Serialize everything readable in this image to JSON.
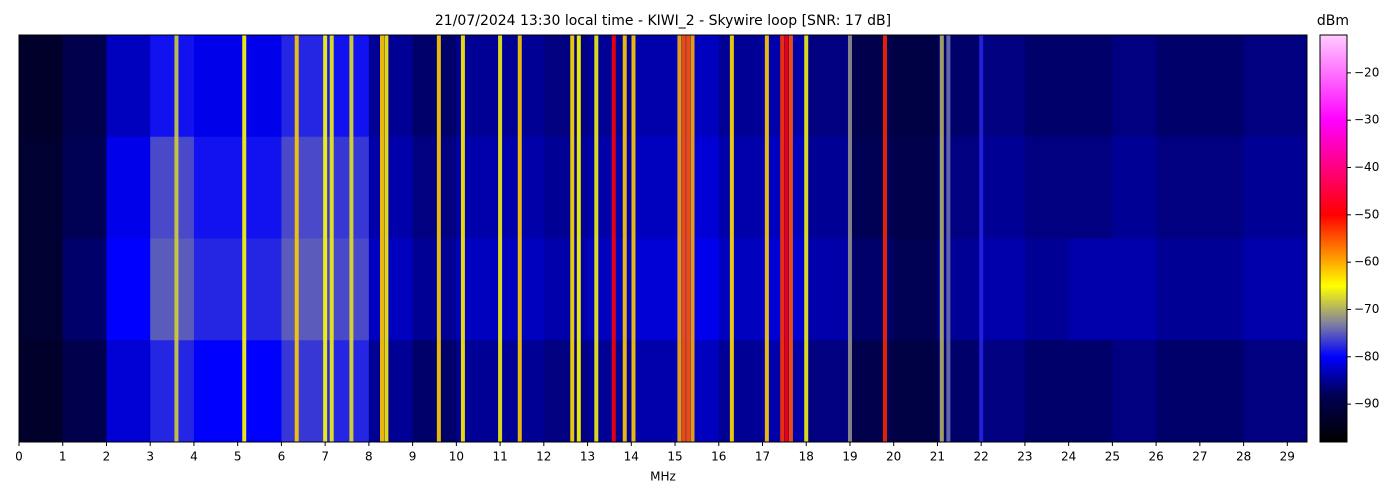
{
  "chart_data": {
    "type": "heatmap",
    "title": "21/07/2024 13:30 local time - KIWI_2 - Skywire loop [SNR: 17 dB]",
    "xlabel": "MHz",
    "colorbar_label": "dBm",
    "xlim": [
      0,
      29.45
    ],
    "xticks": [
      0,
      1,
      2,
      3,
      4,
      5,
      6,
      7,
      8,
      9,
      10,
      11,
      12,
      13,
      14,
      15,
      16,
      17,
      18,
      19,
      20,
      21,
      22,
      23,
      24,
      25,
      26,
      27,
      28,
      29
    ],
    "clim": [
      -98,
      -12
    ],
    "cticks": [
      {
        "value": -20,
        "label": "−20"
      },
      {
        "value": -30,
        "label": "−30"
      },
      {
        "value": -40,
        "label": "−40"
      },
      {
        "value": -50,
        "label": "−50"
      },
      {
        "value": -60,
        "label": "−60"
      },
      {
        "value": -70,
        "label": "−70"
      },
      {
        "value": -80,
        "label": "−80"
      },
      {
        "value": -90,
        "label": "−90"
      }
    ],
    "colorscale": [
      [
        -98,
        "#000000"
      ],
      [
        -88,
        "#000055"
      ],
      [
        -80,
        "#0000ff"
      ],
      [
        -73,
        "#8080a0"
      ],
      [
        -65,
        "#ffff00"
      ],
      [
        -50,
        "#ff0000"
      ],
      [
        -30,
        "#ff00ff"
      ],
      [
        -12,
        "#ffccff"
      ]
    ],
    "bins": [
      0,
      1,
      2,
      3,
      4,
      5,
      6,
      7,
      8,
      9,
      10,
      11,
      12,
      13,
      14,
      15,
      16,
      17,
      18,
      19,
      20,
      21,
      22,
      23,
      24,
      25,
      26,
      27,
      28,
      29,
      29.45
    ],
    "values": [
      [
        -93,
        -89,
        -83,
        -79,
        -81,
        -81,
        -78,
        -79,
        -85,
        -87,
        -85,
        -85,
        -86,
        -85,
        -84,
        -83,
        -85,
        -84,
        -86,
        -89,
        -90,
        -87,
        -86,
        -87,
        -87,
        -86,
        -87,
        -87,
        -86,
        -86
      ],
      [
        -92,
        -88,
        -81,
        -76,
        -79,
        -79,
        -76,
        -77,
        -84,
        -86,
        -84,
        -84,
        -85,
        -84,
        -83,
        -82,
        -84,
        -83,
        -85,
        -88,
        -89,
        -86,
        -85,
        -86,
        -86,
        -85,
        -86,
        -86,
        -85,
        -85
      ],
      [
        -92,
        -87,
        -80,
        -75,
        -78,
        -78,
        -75,
        -76,
        -83,
        -85,
        -83,
        -83,
        -84,
        -83,
        -82,
        -81,
        -83,
        -82,
        -84,
        -87,
        -88,
        -85,
        -84,
        -85,
        -84,
        -84,
        -85,
        -85,
        -84,
        -84
      ],
      [
        -93,
        -89,
        -82,
        -78,
        -80,
        -80,
        -77,
        -78,
        -85,
        -87,
        -85,
        -85,
        -86,
        -85,
        -84,
        -83,
        -85,
        -84,
        -86,
        -89,
        -90,
        -87,
        -86,
        -87,
        -87,
        -86,
        -87,
        -87,
        -86,
        -86
      ]
    ],
    "carriers": {
      "x": [
        3.6,
        5.15,
        6.35,
        7.0,
        7.15,
        7.6,
        8.3,
        8.4,
        9.6,
        10.15,
        11.0,
        11.45,
        12.65,
        12.8,
        13.2,
        13.6,
        13.85,
        14.05,
        15.1,
        15.2,
        15.3,
        15.4,
        16.3,
        17.1,
        17.45,
        17.55,
        17.65,
        18.0,
        19.0,
        19.8,
        21.1,
        21.25,
        22.0
      ],
      "values": [
        -68,
        -65,
        -62,
        -65,
        -66,
        -67,
        -62,
        -64,
        -62,
        -64,
        -66,
        -62,
        -63,
        -65,
        -66,
        -50,
        -62,
        -62,
        -60,
        -55,
        -55,
        -60,
        -63,
        -62,
        -53,
        -50,
        -55,
        -66,
        -72,
        -52,
        -70,
        -74,
        -78
      ]
    }
  }
}
